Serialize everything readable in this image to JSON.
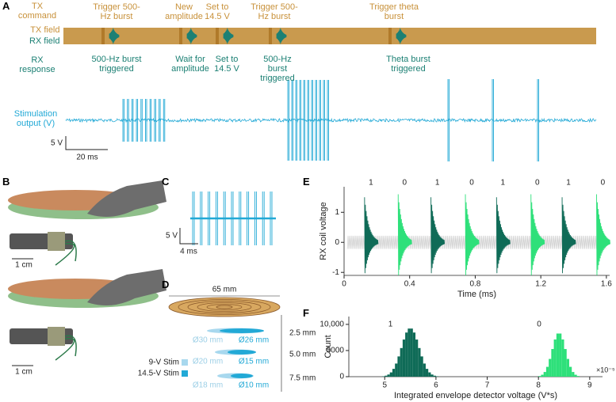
{
  "panels": {
    "A": {
      "letter": "A",
      "row_labels": [
        "TX command",
        "TX field",
        "RX field",
        "RX response",
        "Stimulation output (V)"
      ],
      "tx_annotations": [
        "Trigger 500-Hz burst",
        "New amplitude",
        "Set to 14.5 V",
        "Trigger 500-Hz burst",
        "Trigger theta burst"
      ],
      "rx_annotations": [
        "500-Hz burst triggered",
        "Wait for amplitude",
        "Set to 14.5 V",
        "500-Hz burst triggered",
        "Theta burst triggered"
      ],
      "scale_bar": {
        "voltage": "5 V",
        "time": "20 ms"
      }
    },
    "B": {
      "letter": "B",
      "scale_bars": [
        "1 cm",
        "1 cm"
      ]
    },
    "C": {
      "letter": "C",
      "scale_bar": {
        "voltage": "5 V",
        "time": "4 ms"
      }
    },
    "D": {
      "letter": "D",
      "coil_width": "65 mm",
      "depths": [
        "2.5 mm",
        "5.0 mm",
        "7.5 mm"
      ],
      "diameters": [
        [
          "Ø30 mm",
          "Ø26 mm"
        ],
        [
          "Ø20 mm",
          "Ø15 mm"
        ],
        [
          "Ø18 mm",
          "Ø10 mm"
        ]
      ],
      "legend": [
        "9-V Stim",
        "14.5-V Stim"
      ]
    },
    "E": {
      "letter": "E"
    },
    "F": {
      "letter": "F"
    }
  },
  "chart_data": [
    {
      "type": "burst",
      "xlabel": "Time (ms)",
      "ylabel": "RX coil voltage",
      "xlim": [
        0,
        1.62
      ],
      "ylim": [
        -1.1,
        1.85
      ],
      "xticks": [
        0,
        0.4,
        0.8,
        1.2,
        1.6
      ],
      "yticks": [
        -1,
        0,
        1
      ],
      "series": [
        {
          "name": "1",
          "color": "#0f6b57",
          "x": [
            0.125,
            0.53,
            0.93,
            1.33
          ],
          "values": [
            1.5,
            1.5,
            1.5,
            1.5
          ]
        },
        {
          "name": "0",
          "color": "#2ee07a",
          "x": [
            0.33,
            0.74,
            1.14,
            1.54
          ],
          "values": [
            1.6,
            1.6,
            1.6,
            1.6
          ]
        }
      ]
    },
    {
      "type": "histogram",
      "xlabel": "Integrated envelope detector voltage (V*s)",
      "ylabel": "Count",
      "x_multiplier": "×10⁻⁵",
      "xlim": [
        4.3,
        9.25
      ],
      "ylim": [
        0,
        11500
      ],
      "xticks": [
        5,
        6,
        7,
        8,
        9
      ],
      "yticks": [
        0,
        5000,
        {
          "value": 10000,
          "label": "10,000"
        }
      ],
      "series": [
        {
          "name": "1",
          "color": "#0f6b57",
          "bins": [
            4.95,
            5.0,
            5.05,
            5.1,
            5.15,
            5.2,
            5.25,
            5.3,
            5.35,
            5.4,
            5.45,
            5.5,
            5.55,
            5.6,
            5.65,
            5.7,
            5.75,
            5.8,
            5.85,
            5.9,
            5.95,
            6.0,
            6.05
          ],
          "values": [
            79,
            188,
            409,
            820,
            1495,
            2510,
            3873,
            5475,
            7100,
            8440,
            9200,
            9200,
            8440,
            7100,
            5475,
            3873,
            2510,
            1495,
            820,
            409,
            188,
            79
          ]
        },
        {
          "name": "0",
          "color": "#2ee07a",
          "bins": [
            8.0,
            8.05,
            8.1,
            8.15,
            8.2,
            8.25,
            8.3,
            8.35,
            8.4,
            8.45,
            8.5,
            8.55,
            8.6,
            8.65,
            8.7,
            8.75,
            8.8
          ],
          "values": [
            131,
            370,
            896,
            1880,
            3395,
            5290,
            7115,
            8250,
            8250,
            7115,
            5290,
            3395,
            1880,
            896,
            370,
            131
          ]
        }
      ]
    }
  ]
}
